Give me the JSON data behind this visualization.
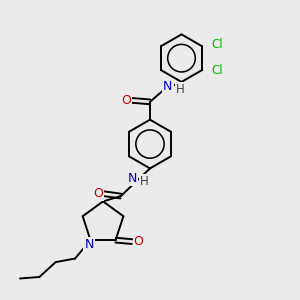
{
  "bg_color": "#ebebeb",
  "atom_colors": {
    "C": "#000000",
    "N": "#0000cc",
    "O": "#cc0000",
    "Cl": "#00bb00",
    "H": "#404040"
  },
  "bond_color": "#000000",
  "bond_width": 1.4,
  "figsize": [
    3.0,
    3.0
  ],
  "dpi": 100,
  "xlim": [
    0,
    10
  ],
  "ylim": [
    0,
    10
  ]
}
